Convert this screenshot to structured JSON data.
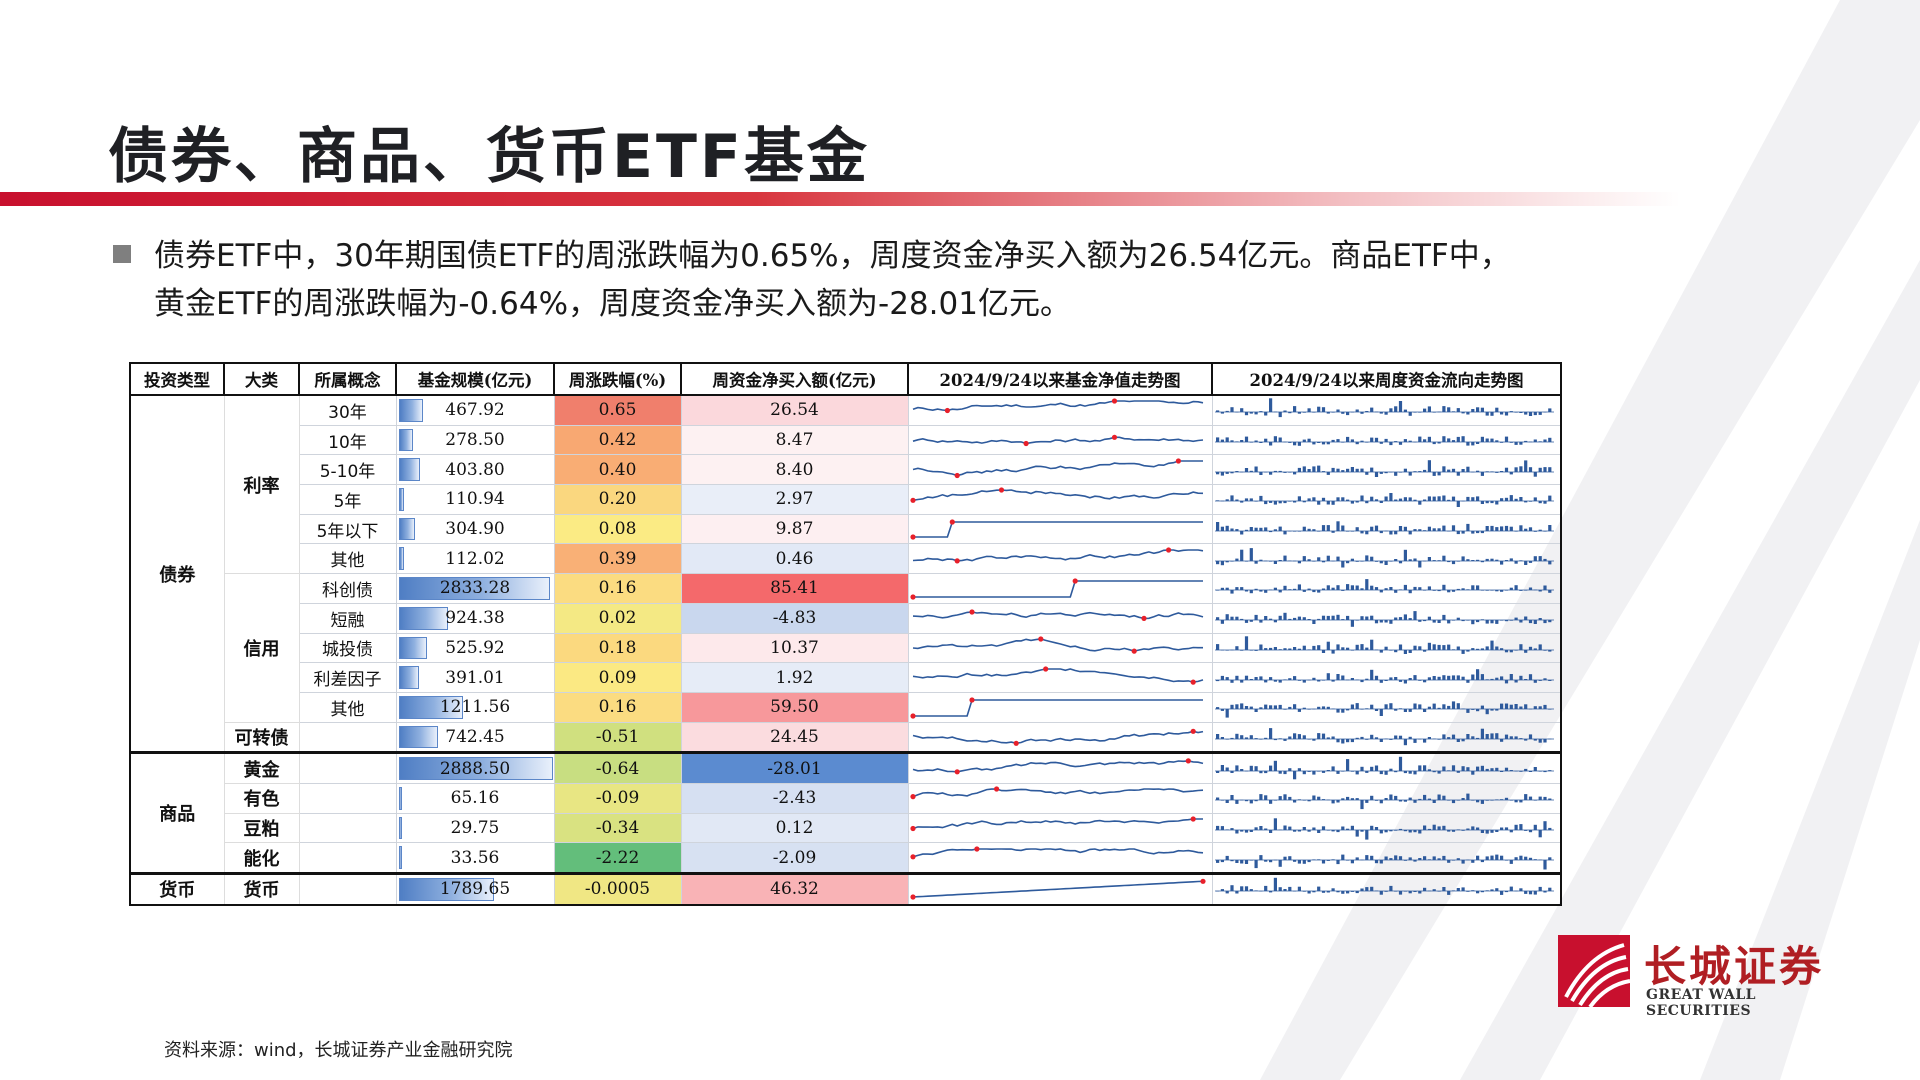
{
  "title": "债券、商品、货币ETF基金",
  "summary": {
    "line1": "债券ETF中，30年期国债ETF的周涨跌幅为0.65%，周度资金净买入额为26.54亿元。商品ETF中，",
    "line2": "黄金ETF的周涨跌幅为-0.64%，周度资金净买入额为-28.01亿元。"
  },
  "table": {
    "headers": [
      "投资类型",
      "大类",
      "所属概念",
      "基金规模(亿元)",
      "周涨跌幅(%)",
      "周资金净买入额(亿元)",
      "2024/9/24以来基金净值走势图",
      "2024/9/24以来周度资金流向走势图"
    ],
    "groups": {
      "bond": "债券",
      "commodity": "商品",
      "money": "货币",
      "rate": "利率",
      "credit": "信用",
      "convertible": "可转债",
      "gold": "黄金",
      "metals": "有色",
      "soy": "豆粕",
      "energy": "能化",
      "cash": "货币"
    },
    "rows": [
      {
        "concept": "30年",
        "scale": "467.92",
        "change": "0.65",
        "flow": "26.54",
        "chg_color": "#f07f6c",
        "flow_color": "#fbd8dc"
      },
      {
        "concept": "10年",
        "scale": "278.50",
        "change": "0.42",
        "flow": "8.47",
        "chg_color": "#f8a872",
        "flow_color": "#fdf1f2"
      },
      {
        "concept": "5-10年",
        "scale": "403.80",
        "change": "0.40",
        "flow": "8.40",
        "chg_color": "#f9ad74",
        "flow_color": "#fdf1f2"
      },
      {
        "concept": "5年",
        "scale": "110.94",
        "change": "0.20",
        "flow": "2.97",
        "chg_color": "#fad77f",
        "flow_color": "#e9eef8"
      },
      {
        "concept": "5年以下",
        "scale": "304.90",
        "change": "0.08",
        "flow": "9.87",
        "chg_color": "#fbeb84",
        "flow_color": "#fdeff1"
      },
      {
        "concept": "其他",
        "scale": "112.02",
        "change": "0.39",
        "flow": "0.46",
        "chg_color": "#f9b076",
        "flow_color": "#e2e9f6"
      },
      {
        "concept": "科创债",
        "scale": "2833.28",
        "change": "0.16",
        "flow": "85.41",
        "chg_color": "#fbdc81",
        "flow_color": "#f4696b"
      },
      {
        "concept": "短融",
        "scale": "924.38",
        "change": "0.02",
        "flow": "-4.83",
        "chg_color": "#f4e984",
        "flow_color": "#c9d7ee"
      },
      {
        "concept": "城投债",
        "scale": "525.92",
        "change": "0.18",
        "flow": "10.37",
        "chg_color": "#fbd97f",
        "flow_color": "#fde9eb"
      },
      {
        "concept": "利差因子",
        "scale": "391.01",
        "change": "0.09",
        "flow": "1.92",
        "chg_color": "#fbe983",
        "flow_color": "#e6ecf7"
      },
      {
        "concept": "其他",
        "scale": "1211.56",
        "change": "0.16",
        "flow": "59.50",
        "chg_color": "#fbdc81",
        "flow_color": "#f7989b"
      },
      {
        "concept": "",
        "scale": "742.45",
        "change": "-0.51",
        "flow": "24.45",
        "chg_color": "#d0e07f",
        "flow_color": "#fbdcdf"
      },
      {
        "concept": "",
        "scale": "2888.50",
        "change": "-0.64",
        "flow": "-28.01",
        "chg_color": "#c8de81",
        "flow_color": "#5b8bd0"
      },
      {
        "concept": "",
        "scale": "65.16",
        "change": "-0.09",
        "flow": "-2.43",
        "chg_color": "#e8e683",
        "flow_color": "#d6e0f2"
      },
      {
        "concept": "",
        "scale": "29.75",
        "change": "-0.34",
        "flow": "0.12",
        "chg_color": "#d9e281",
        "flow_color": "#e1e8f5"
      },
      {
        "concept": "",
        "scale": "33.56",
        "change": "-2.22",
        "flow": "-2.09",
        "chg_color": "#63be7b",
        "flow_color": "#d7e1f2"
      },
      {
        "concept": "",
        "scale": "1789.65",
        "change": "-0.0005",
        "flow": "46.32",
        "chg_color": "#f0e784",
        "flow_color": "#f9b3b6"
      }
    ]
  },
  "colors": {
    "accent_red": "#c8102e",
    "bar_blue": "#4f7ec4",
    "spark_line": "#2e5a9c",
    "spark_marker": "#e8202a"
  },
  "source": "资料来源：wind，长城证券产业金融研究院",
  "logo": {
    "cn": "长城证券",
    "en": "GREAT WALL SECURITIES"
  }
}
